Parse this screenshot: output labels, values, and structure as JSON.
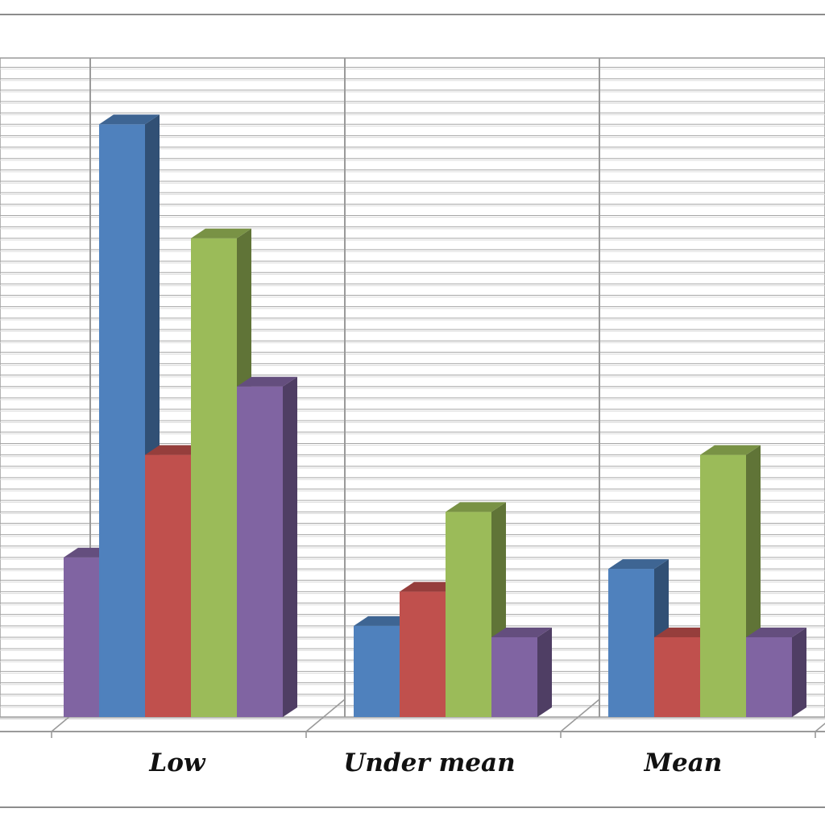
{
  "chart_data": {
    "type": "bar",
    "categories": [
      "",
      "Low",
      "Under mean",
      "Mean"
    ],
    "series": [
      {
        "values": [
          null,
          26,
          4,
          6.5
        ]
      },
      {
        "values": [
          null,
          11.5,
          5.5,
          3.5
        ]
      },
      {
        "values": [
          null,
          21,
          9,
          11.5
        ]
      },
      {
        "values": [
          7,
          14.5,
          3.5,
          3.5
        ]
      }
    ],
    "colors": [
      "#4f81bd",
      "#c0504d",
      "#9bbb59",
      "#8064a2"
    ],
    "ylim": [
      0,
      27
    ],
    "grid": true,
    "title": "",
    "xlabel": "",
    "ylabel": ""
  }
}
